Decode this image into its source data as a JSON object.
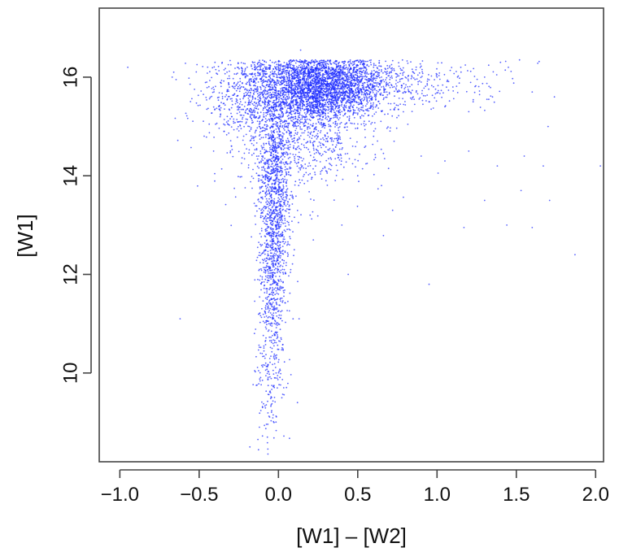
{
  "chart_data": {
    "type": "scatter",
    "title": "",
    "xlabel": "[W1] – [W2]",
    "ylabel": "[W1]",
    "xlim": [
      -1.13,
      2.05
    ],
    "ylim": [
      8.2,
      17.4
    ],
    "xticks": [
      -1.0,
      -0.5,
      0.0,
      0.5,
      1.0,
      1.5,
      2.0
    ],
    "xtick_labels": [
      "−1.0",
      "−0.5",
      "0.0",
      "0.5",
      "1.0",
      "1.5",
      "2.0"
    ],
    "yticks": [
      10,
      12,
      14,
      16
    ],
    "ytick_labels": [
      "10",
      "12",
      "14",
      "16"
    ],
    "grid": false,
    "legend": "none",
    "point_color": "#1f2dff",
    "series": [
      {
        "name": "",
        "points": [
          [
            -0.95,
            16.2
          ],
          [
            -0.66,
            16.1
          ],
          [
            -0.67,
            16.0
          ],
          [
            -0.4,
            16.3
          ],
          [
            -0.3,
            16.25
          ],
          [
            -0.22,
            16.28
          ],
          [
            -0.15,
            16.3
          ],
          [
            -0.1,
            16.25
          ],
          [
            -0.05,
            16.1
          ],
          [
            0.0,
            16.15
          ],
          [
            0.05,
            16.2
          ],
          [
            0.1,
            16.0
          ],
          [
            0.14,
            16.55
          ],
          [
            0.2,
            16.3
          ],
          [
            0.25,
            16.1
          ],
          [
            0.3,
            16.2
          ],
          [
            0.35,
            16.0
          ],
          [
            0.4,
            16.1
          ],
          [
            0.45,
            15.9
          ],
          [
            0.5,
            16.0
          ],
          [
            0.55,
            16.2
          ],
          [
            0.6,
            15.8
          ],
          [
            0.65,
            16.0
          ],
          [
            0.7,
            16.2
          ],
          [
            0.75,
            15.7
          ],
          [
            0.8,
            16.0
          ],
          [
            0.85,
            15.6
          ],
          [
            0.9,
            15.9
          ],
          [
            0.95,
            15.5
          ],
          [
            1.0,
            16.0
          ],
          [
            1.05,
            15.4
          ],
          [
            1.1,
            15.8
          ],
          [
            1.15,
            16.2
          ],
          [
            1.2,
            15.3
          ],
          [
            1.3,
            16.0
          ],
          [
            1.35,
            15.6
          ],
          [
            1.4,
            16.3
          ],
          [
            1.45,
            16.2
          ],
          [
            1.52,
            16.35
          ],
          [
            1.6,
            15.7
          ],
          [
            1.7,
            15.0
          ],
          [
            1.74,
            15.6
          ],
          [
            0.72,
            13.3
          ],
          [
            0.9,
            14.4
          ],
          [
            1.05,
            14.3
          ],
          [
            1.2,
            14.5
          ],
          [
            1.38,
            14.2
          ],
          [
            1.53,
            13.7
          ],
          [
            1.55,
            14.4
          ],
          [
            1.67,
            14.2
          ],
          [
            1.71,
            13.5
          ],
          [
            1.6,
            12.95
          ],
          [
            1.44,
            13.0
          ],
          [
            1.17,
            12.95
          ],
          [
            1.3,
            13.5
          ],
          [
            0.95,
            11.8
          ],
          [
            0.44,
            12.0
          ],
          [
            1.87,
            12.4
          ],
          [
            2.03,
            14.2
          ],
          [
            -0.62,
            11.1
          ],
          [
            0.12,
            9.4
          ],
          [
            0.13,
            11.1
          ],
          [
            0.1,
            12.5
          ],
          [
            0.2,
            13.2
          ],
          [
            0.22,
            12.7
          ],
          [
            0.3,
            13.9
          ],
          [
            0.35,
            14.5
          ],
          [
            0.4,
            13.0
          ],
          [
            0.5,
            14.0
          ],
          [
            0.6,
            14.8
          ],
          [
            0.65,
            13.8
          ],
          [
            0.15,
            14.2
          ],
          [
            0.25,
            14.8
          ],
          [
            0.33,
            15.0
          ],
          [
            0.45,
            15.3
          ],
          [
            0.55,
            14.6
          ],
          [
            -0.18,
            8.5
          ],
          [
            -0.12,
            8.9
          ],
          [
            -0.1,
            9.3
          ],
          [
            -0.07,
            8.7
          ],
          [
            -0.05,
            9.6
          ],
          [
            -0.02,
            9.9
          ],
          [
            -0.08,
            10.2
          ],
          [
            -0.04,
            10.5
          ],
          [
            -0.01,
            10.7
          ],
          [
            -0.06,
            11.0
          ],
          [
            -0.03,
            11.3
          ],
          [
            0.0,
            11.6
          ]
        ]
      }
    ],
    "density_regions": [
      {
        "cx": 0.25,
        "cy": 15.8,
        "sx": 0.2,
        "sy": 0.35,
        "weight": 2600
      },
      {
        "cx": 0.05,
        "cy": 15.4,
        "sx": 0.25,
        "sy": 0.6,
        "weight": 900
      },
      {
        "cx": -0.02,
        "cy": 13.8,
        "sx": 0.05,
        "sy": 0.9,
        "weight": 900
      },
      {
        "cx": -0.04,
        "cy": 12.0,
        "sx": 0.04,
        "sy": 0.9,
        "weight": 500
      },
      {
        "cx": -0.05,
        "cy": 10.2,
        "sx": 0.05,
        "sy": 0.9,
        "weight": 180
      },
      {
        "cx": 0.5,
        "cy": 15.9,
        "sx": 0.3,
        "sy": 0.3,
        "weight": 500
      },
      {
        "cx": 0.15,
        "cy": 14.6,
        "sx": 0.2,
        "sy": 0.6,
        "weight": 400
      },
      {
        "cx": -0.2,
        "cy": 15.6,
        "sx": 0.15,
        "sy": 0.5,
        "weight": 250
      },
      {
        "cx": 0.9,
        "cy": 15.9,
        "sx": 0.3,
        "sy": 0.3,
        "weight": 120
      }
    ]
  }
}
